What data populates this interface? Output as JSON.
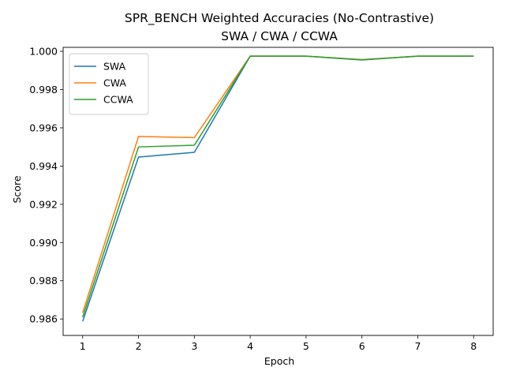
{
  "chart_data": {
    "type": "line",
    "title": "SPR_BENCH Weighted Accuracies (No-Contrastive)",
    "subtitle": "SWA / CWA / CCWA",
    "xlabel": "Epoch",
    "ylabel": "Score",
    "x": [
      1,
      2,
      3,
      4,
      5,
      6,
      7,
      8
    ],
    "xlim": [
      0.65,
      8.35
    ],
    "ylim": [
      0.98514,
      1.00021
    ],
    "xticks": [
      "1",
      "2",
      "3",
      "4",
      "5",
      "6",
      "7",
      "8"
    ],
    "yticks": [
      "0.986",
      "0.988",
      "0.990",
      "0.992",
      "0.994",
      "0.996",
      "0.998",
      "1.000"
    ],
    "grid": false,
    "legend_position": "top-left",
    "series": [
      {
        "name": "SWA",
        "color": "#1f77b4",
        "values": [
          0.98588,
          0.99447,
          0.99472,
          0.99975,
          0.99975,
          0.99955,
          0.99975,
          0.99975
        ]
      },
      {
        "name": "CWA",
        "color": "#ff7f0e",
        "values": [
          0.98633,
          0.99555,
          0.99549,
          0.99975,
          0.99975,
          0.99957,
          0.99975,
          0.99975
        ]
      },
      {
        "name": "CCWA",
        "color": "#2ca02c",
        "values": [
          0.9861,
          0.995,
          0.99509,
          0.99975,
          0.99975,
          0.99956,
          0.99975,
          0.99975
        ]
      }
    ]
  }
}
